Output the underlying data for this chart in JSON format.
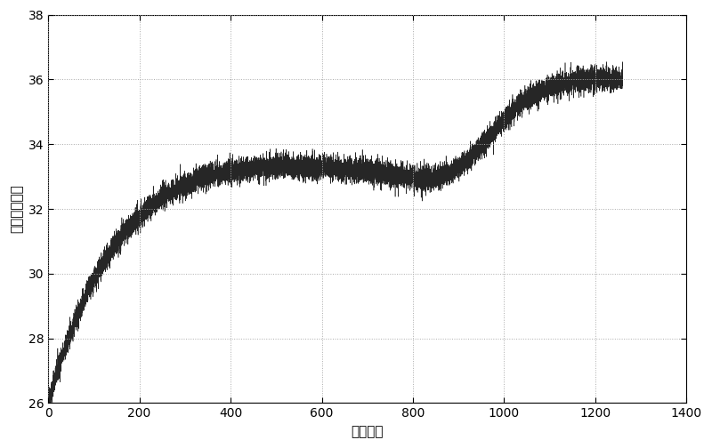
{
  "xlabel": "时间：秒",
  "ylabel": "温度：摄氏度",
  "xlim": [
    0,
    1400
  ],
  "ylim": [
    26,
    38
  ],
  "xticks": [
    0,
    200,
    400,
    600,
    800,
    1000,
    1200,
    1400
  ],
  "yticks": [
    26,
    28,
    30,
    32,
    34,
    36,
    38
  ],
  "line_color": "#000000",
  "bg_color": "#ffffff",
  "noise_amplitude": 0.18,
  "seed": 42,
  "n_points": 12600,
  "t_end": 1260,
  "figsize": [
    8.0,
    5.04
  ],
  "dpi": 100
}
